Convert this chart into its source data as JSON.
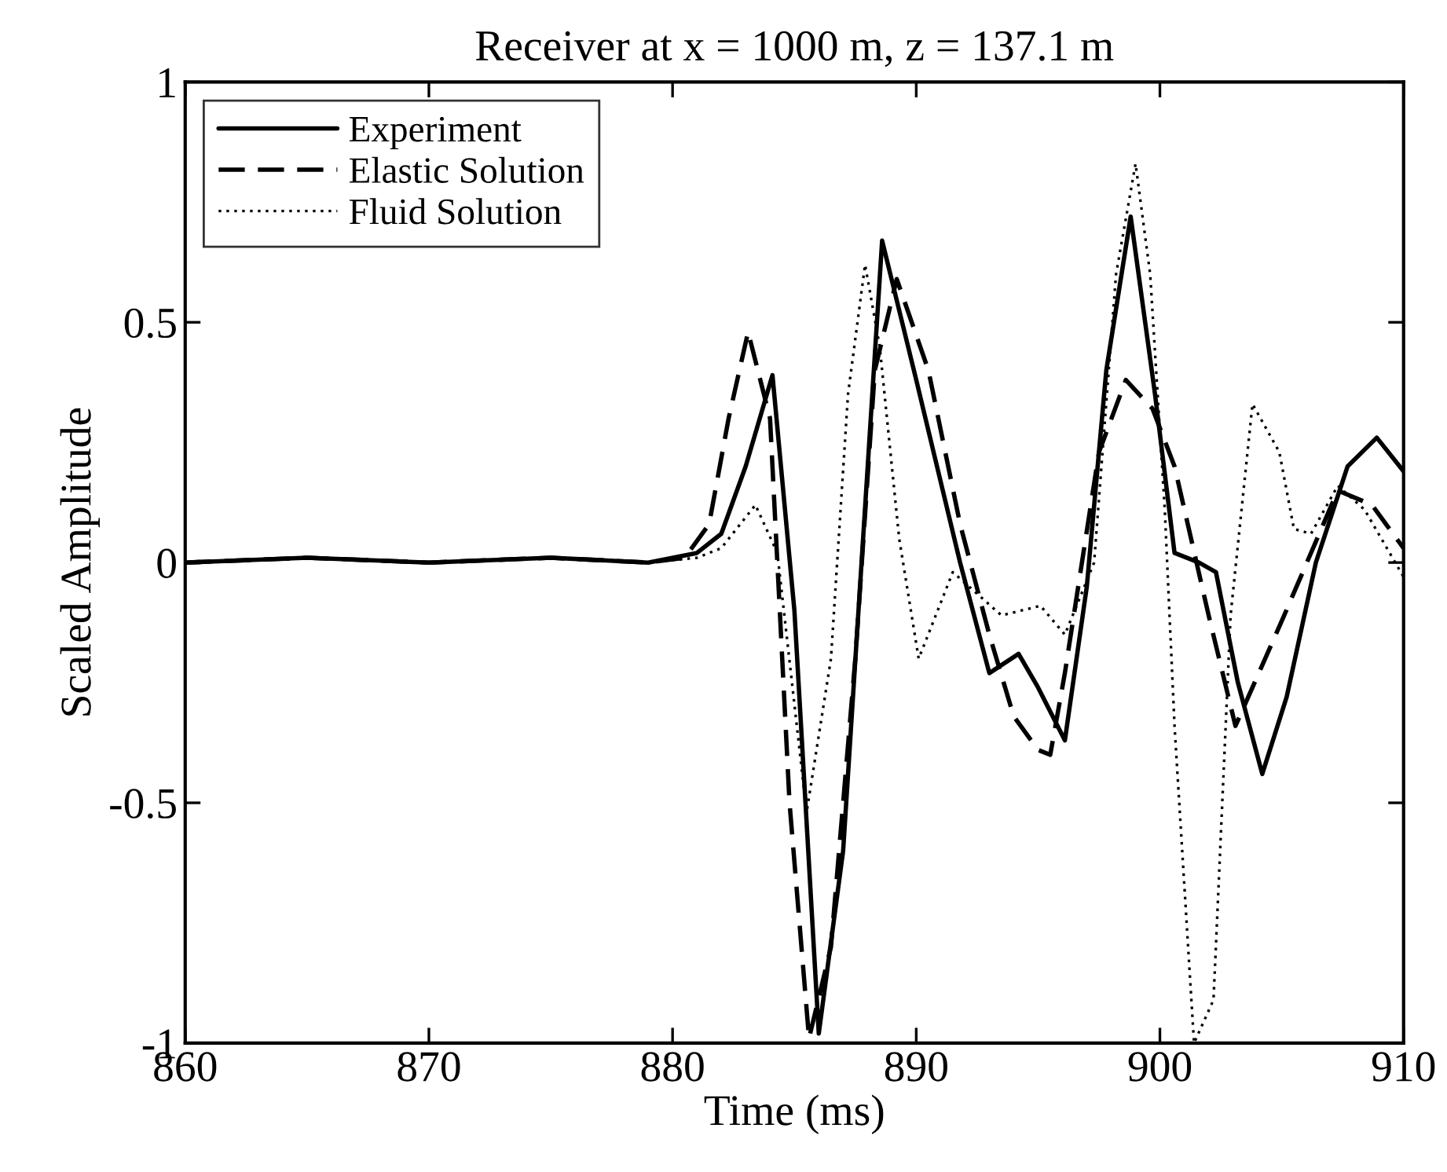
{
  "chart_data": {
    "type": "line",
    "title": "Receiver at x = 1000 m, z = 137.1 m",
    "xlabel": "Time (ms)",
    "ylabel": "Scaled Amplitude",
    "xlim": [
      860,
      910
    ],
    "xticks": [
      860,
      870,
      880,
      890,
      900,
      910
    ],
    "ylim": [
      -1,
      1
    ],
    "yticks": [
      -1,
      -0.5,
      0,
      0.5,
      1
    ],
    "grid": false,
    "legend": "top left",
    "series": [
      {
        "name": "Experiment",
        "color": "#000000",
        "line_style": "solid",
        "x": [
          860,
          865,
          870,
          875,
          879,
          881,
          882,
          883,
          884.1,
          885,
          886.0,
          887,
          888.6,
          890,
          891.8,
          893.0,
          894.2,
          895,
          896.1,
          897,
          897.8,
          898.8,
          899.8,
          900.6,
          901.6,
          902.3,
          903.2,
          904.2,
          905.2,
          906.4,
          907.7,
          908.9,
          910
        ],
        "values": [
          0,
          0.01,
          0,
          0.01,
          0,
          0.02,
          0.06,
          0.2,
          0.39,
          -0.1,
          -0.98,
          -0.6,
          0.67,
          0.38,
          0,
          -0.23,
          -0.19,
          -0.26,
          -0.37,
          -0.05,
          0.4,
          0.72,
          0.35,
          0.02,
          0,
          -0.02,
          -0.25,
          -0.44,
          -0.28,
          0,
          0.2,
          0.26,
          0.19
        ]
      },
      {
        "name": "Elastic Solution",
        "color": "#000000",
        "line_style": "dashed",
        "x": [
          860,
          865,
          870,
          875,
          879,
          880.5,
          881.5,
          882.3,
          883.1,
          884,
          884.8,
          885.6,
          886.5,
          887.5,
          888.3,
          889.2,
          890.5,
          891.8,
          893.0,
          894.0,
          895.0,
          895.5,
          896.1,
          897.5,
          898.6,
          899.7,
          900.6,
          902.0,
          903.1,
          905.1,
          907.3,
          908.7,
          910
        ],
        "values": [
          0,
          0.01,
          0,
          0.01,
          0,
          0.01,
          0.08,
          0.3,
          0.48,
          0.3,
          -0.5,
          -0.99,
          -0.8,
          -0.2,
          0.4,
          0.59,
          0.4,
          0.08,
          -0.15,
          -0.32,
          -0.39,
          -0.4,
          -0.23,
          0.23,
          0.38,
          0.32,
          0.2,
          -0.11,
          -0.34,
          -0.11,
          0.15,
          0.12,
          0.03
        ]
      },
      {
        "name": "Fluid Solution",
        "color": "#000000",
        "line_style": "dotted",
        "x": [
          860,
          865,
          870,
          875,
          879,
          881,
          882,
          883.4,
          884.3,
          885.5,
          886.5,
          887.2,
          887.9,
          888.5,
          889.3,
          890.1,
          891.5,
          893.5,
          895.1,
          896.1,
          897.3,
          898.2,
          899.0,
          899.6,
          900.2,
          900.6,
          901.4,
          902.2,
          902.9,
          903.8,
          904.9,
          905.5,
          906.2,
          907.3,
          908.4,
          910
        ],
        "values": [
          0,
          0.01,
          0,
          0.01,
          0,
          0.01,
          0.03,
          0.12,
          0.02,
          -0.52,
          -0.2,
          0.35,
          0.62,
          0.45,
          0.05,
          -0.2,
          -0.02,
          -0.11,
          -0.09,
          -0.15,
          0,
          0.6,
          0.83,
          0.6,
          0.11,
          -0.34,
          -1.0,
          -0.91,
          -0.11,
          0.33,
          0.23,
          0.07,
          0.06,
          0.16,
          0.11,
          -0.03
        ]
      }
    ]
  }
}
